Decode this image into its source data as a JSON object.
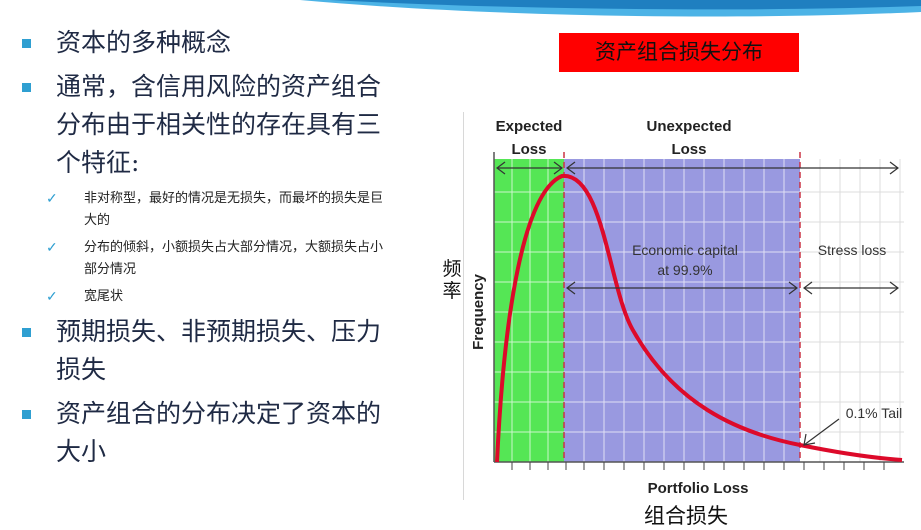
{
  "slide": {
    "bullets": [
      {
        "text": "资本的多种概念",
        "sub": []
      },
      {
        "text": "通常，含信用风险的资产组合分布由于相关性的存在具有三个特征:",
        "sub": [
          "非对称型，最好的情况是无损失，而最坏的损失是巨大的",
          "分布的倾斜，小额损失占大部分情况，大额损失占小部分情况",
          "宽尾状"
        ]
      },
      {
        "text": "预期损失、非预期损失、压力损失",
        "sub": []
      },
      {
        "text": "资产组合的分布决定了资本的大小",
        "sub": []
      }
    ],
    "chart_title_box": "资产组合损失分布",
    "y_label_cn": "频率",
    "x_label_cn": "组合损失"
  },
  "chart_data": {
    "type": "area",
    "xlabel": "Portfolio Loss",
    "ylabel": "Frequency",
    "regions": [
      {
        "label_top": "Expected",
        "label_bottom": "Loss",
        "color": "#55e655"
      },
      {
        "label_top": "Unexpected",
        "label_bottom": "Loss",
        "color": "#9999e0"
      }
    ],
    "annotations": [
      "Economic capital",
      "at 99.9%",
      "Stress loss",
      "0.1% Tail"
    ],
    "colors": {
      "curve": "#dd0a2a",
      "expected": "#55e655",
      "unexpected": "#9999e0",
      "divider": "#cc3344"
    }
  }
}
